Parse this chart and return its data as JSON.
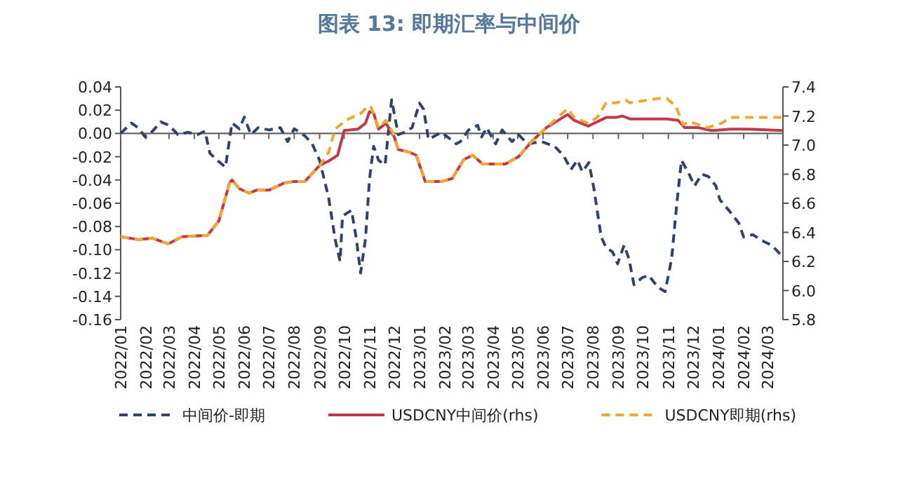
{
  "chart_data": {
    "type": "line",
    "title": "图表 13: 即期汇率与中间价",
    "xlim": [
      "2022-01-01",
      "2024-03-20"
    ],
    "xticks": [
      {
        "value": "2022-01",
        "label": "2022/01"
      },
      {
        "value": "2022-02",
        "label": "2022/02"
      },
      {
        "value": "2022-03",
        "label": "2022/03"
      },
      {
        "value": "2022-04",
        "label": "2022/04"
      },
      {
        "value": "2022-05",
        "label": "2022/05"
      },
      {
        "value": "2022-06",
        "label": "2022/06"
      },
      {
        "value": "2022-07",
        "label": "2022/07"
      },
      {
        "value": "2022-08",
        "label": "2022/08"
      },
      {
        "value": "2022-09",
        "label": "2022/09"
      },
      {
        "value": "2022-10",
        "label": "2022/10"
      },
      {
        "value": "2022-11",
        "label": "2022/11"
      },
      {
        "value": "2022-12",
        "label": "2022/12"
      },
      {
        "value": "2023-01",
        "label": "2023/01"
      },
      {
        "value": "2023-02",
        "label": "2023/02"
      },
      {
        "value": "2023-03",
        "label": "2023/03"
      },
      {
        "value": "2023-04",
        "label": "2023/04"
      },
      {
        "value": "2023-05",
        "label": "2023/05"
      },
      {
        "value": "2023-06",
        "label": "2023/06"
      },
      {
        "value": "2023-07",
        "label": "2023/07"
      },
      {
        "value": "2023-08",
        "label": "2023/08"
      },
      {
        "value": "2023-09",
        "label": "2023/09"
      },
      {
        "value": "2023-10",
        "label": "2023/10"
      },
      {
        "value": "2023-11",
        "label": "2023/11"
      },
      {
        "value": "2023-12",
        "label": "2023/12"
      },
      {
        "value": "2024-01",
        "label": "2024/01"
      },
      {
        "value": "2024-02",
        "label": "2024/02"
      },
      {
        "value": "2024-03",
        "label": "2024/03"
      }
    ],
    "ylim": [
      -0.16,
      0.04
    ],
    "yticks": [
      {
        "value": 0.04,
        "label": "0.04"
      },
      {
        "value": 0.02,
        "label": "0.02"
      },
      {
        "value": 0,
        "label": "0.00"
      },
      {
        "value": -0.02,
        "label": "-0.02"
      },
      {
        "value": -0.04,
        "label": "-0.04"
      },
      {
        "value": -0.06,
        "label": "-0.06"
      },
      {
        "value": -0.08,
        "label": "-0.08"
      },
      {
        "value": -0.1,
        "label": "-0.10"
      },
      {
        "value": -0.12,
        "label": "-0.12"
      },
      {
        "value": -0.14,
        "label": "-0.14"
      },
      {
        "value": -0.16,
        "label": "-0.16"
      }
    ],
    "y2lim": [
      5.8,
      7.4
    ],
    "y2ticks": [
      {
        "value": 7.4,
        "label": "7.4"
      },
      {
        "value": 7.2,
        "label": "7.2"
      },
      {
        "value": 7.0,
        "label": "7.0"
      },
      {
        "value": 6.8,
        "label": "6.8"
      },
      {
        "value": 6.6,
        "label": "6.6"
      },
      {
        "value": 6.4,
        "label": "6.4"
      },
      {
        "value": 6.2,
        "label": "6.2"
      },
      {
        "value": 6.0,
        "label": "6.0"
      },
      {
        "value": 5.8,
        "label": "5.8"
      }
    ],
    "legend": "bottom",
    "series": [
      {
        "name": "中间价-即期",
        "color": "#2f4468",
        "line_style": "dashed",
        "x": [
          "2022-01-01",
          "2022-01-14",
          "2022-01-22",
          "2022-01-31",
          "2022-02-09",
          "2022-02-19",
          "2022-03-01",
          "2022-03-12",
          "2022-03-24",
          "2022-04-05",
          "2022-04-14",
          "2022-04-20",
          "2022-04-29",
          "2022-05-09",
          "2022-05-17",
          "2022-05-26",
          "2022-06-01",
          "2022-06-09",
          "2022-06-18",
          "2022-07-01",
          "2022-07-15",
          "2022-07-24",
          "2022-08-01",
          "2022-08-14",
          "2022-08-23",
          "2022-09-01",
          "2022-09-12",
          "2022-09-20",
          "2022-09-26",
          "2022-09-29",
          "2022-10-10",
          "2022-10-16",
          "2022-10-21",
          "2022-10-27",
          "2022-11-01",
          "2022-11-06",
          "2022-11-12",
          "2022-11-20",
          "2022-11-24",
          "2022-11-28",
          "2022-12-06",
          "2022-12-14",
          "2022-12-23",
          "2023-01-01",
          "2023-01-06",
          "2023-01-12",
          "2023-01-28",
          "2023-02-15",
          "2023-02-20",
          "2023-03-02",
          "2023-03-13",
          "2023-03-18",
          "2023-03-24",
          "2023-04-04",
          "2023-04-12",
          "2023-04-24",
          "2023-05-02",
          "2023-05-13",
          "2023-05-30",
          "2023-06-15",
          "2023-06-26",
          "2023-07-05",
          "2023-07-13",
          "2023-07-19",
          "2023-07-27",
          "2023-08-02",
          "2023-08-11",
          "2023-08-17",
          "2023-08-25",
          "2023-08-31",
          "2023-09-08",
          "2023-09-14",
          "2023-09-20",
          "2023-09-30",
          "2023-10-08",
          "2023-10-19",
          "2023-10-28",
          "2023-11-05",
          "2023-11-11",
          "2023-11-17",
          "2023-11-25",
          "2023-12-03",
          "2023-12-12",
          "2023-12-20",
          "2023-12-29",
          "2024-01-03",
          "2024-01-15",
          "2024-01-26",
          "2024-02-01",
          "2024-02-12",
          "2024-02-26",
          "2024-03-06",
          "2024-03-20"
        ],
        "values": [
          0,
          0.009,
          0.005,
          -0.003,
          0.002,
          0.01,
          0.007,
          -0.001,
          0.001,
          -0.001,
          0.002,
          -0.017,
          -0.023,
          -0.029,
          0.009,
          0.004,
          0.014,
          -0.001,
          0.005,
          0.003,
          0.005,
          -0.007,
          0.004,
          -0.002,
          -0.009,
          -0.023,
          -0.055,
          -0.091,
          -0.11,
          -0.071,
          -0.066,
          -0.091,
          -0.12,
          -0.091,
          -0.039,
          -0.011,
          -0.023,
          -0.027,
          0.001,
          0.029,
          -0.001,
          0.001,
          0.005,
          0.026,
          0.021,
          -0.005,
          0.001,
          -0.009,
          -0.007,
          0.003,
          0.007,
          -0.003,
          0.005,
          -0.009,
          0.003,
          -0.007,
          -0.001,
          -0.009,
          -0.007,
          -0.011,
          -0.019,
          -0.031,
          -0.023,
          -0.033,
          -0.025,
          -0.047,
          -0.089,
          -0.098,
          -0.102,
          -0.112,
          -0.096,
          -0.108,
          -0.13,
          -0.124,
          -0.122,
          -0.132,
          -0.136,
          -0.108,
          -0.063,
          -0.023,
          -0.033,
          -0.045,
          -0.035,
          -0.037,
          -0.045,
          -0.057,
          -0.067,
          -0.077,
          -0.089,
          -0.087,
          -0.093,
          -0.096,
          -0.106
        ]
      },
      {
        "name": "USDCNY中间价(rhs)",
        "color": "#c0394b",
        "line_style": "solid",
        "axis": "y2",
        "x": [
          "2022-01-01",
          "2022-01-23",
          "2022-02-09",
          "2022-02-28",
          "2022-03-17",
          "2022-04-17",
          "2022-05-01",
          "2022-05-14",
          "2022-05-17",
          "2022-05-26",
          "2022-06-07",
          "2022-06-16",
          "2022-07-01",
          "2022-07-20",
          "2022-08-01",
          "2022-08-14",
          "2022-09-01",
          "2022-09-12",
          "2022-09-23",
          "2022-10-01",
          "2022-10-18",
          "2022-10-27",
          "2022-11-01",
          "2022-11-06",
          "2022-11-12",
          "2022-11-21",
          "2022-12-01",
          "2022-12-06",
          "2022-12-20",
          "2022-12-28",
          "2023-01-08",
          "2023-01-28",
          "2023-02-10",
          "2023-02-24",
          "2023-03-07",
          "2023-03-19",
          "2023-04-16",
          "2023-05-02",
          "2023-05-19",
          "2023-06-05",
          "2023-07-01",
          "2023-07-09",
          "2023-07-26",
          "2023-08-17",
          "2023-08-29",
          "2023-09-06",
          "2023-09-15",
          "2023-10-30",
          "2023-11-13",
          "2023-11-21",
          "2023-12-07",
          "2023-12-24",
          "2024-01-16",
          "2024-02-07",
          "2024-03-20"
        ],
        "values": [
          6.37,
          6.35,
          6.36,
          6.32,
          6.37,
          6.38,
          6.48,
          6.74,
          6.76,
          6.7,
          6.67,
          6.69,
          6.69,
          6.74,
          6.75,
          6.75,
          6.86,
          6.89,
          6.93,
          7.1,
          7.11,
          7.15,
          7.23,
          7.22,
          7.11,
          7.15,
          7.06,
          6.97,
          6.95,
          6.93,
          6.75,
          6.75,
          6.77,
          6.9,
          6.93,
          6.87,
          6.87,
          6.92,
          7.03,
          7.12,
          7.21,
          7.17,
          7.13,
          7.19,
          7.19,
          7.2,
          7.18,
          7.18,
          7.17,
          7.12,
          7.12,
          7.1,
          7.11,
          7.11,
          7.1
        ]
      },
      {
        "name": "USDCNY即期(rhs)",
        "color": "#f0a830",
        "line_style": "dashed",
        "axis": "y2",
        "x": [
          "2022-01-01",
          "2022-01-23",
          "2022-02-09",
          "2022-02-28",
          "2022-03-17",
          "2022-04-17",
          "2022-05-01",
          "2022-05-14",
          "2022-05-17",
          "2022-05-26",
          "2022-06-07",
          "2022-06-16",
          "2022-07-01",
          "2022-07-20",
          "2022-08-01",
          "2022-08-14",
          "2022-09-01",
          "2022-09-12",
          "2022-09-20",
          "2022-10-03",
          "2022-10-22",
          "2022-10-30",
          "2022-11-03",
          "2022-11-12",
          "2022-11-21",
          "2022-12-01",
          "2022-12-06",
          "2022-12-20",
          "2022-12-28",
          "2023-01-08",
          "2023-01-28",
          "2023-02-10",
          "2023-02-24",
          "2023-03-07",
          "2023-03-19",
          "2023-04-16",
          "2023-05-02",
          "2023-05-19",
          "2023-06-05",
          "2023-07-01",
          "2023-07-09",
          "2023-07-26",
          "2023-08-06",
          "2023-08-17",
          "2023-08-29",
          "2023-09-10",
          "2023-09-15",
          "2023-09-26",
          "2023-10-19",
          "2023-10-30",
          "2023-11-10",
          "2023-11-19",
          "2023-11-27",
          "2023-12-19",
          "2024-01-05",
          "2024-01-16",
          "2024-02-07",
          "2024-03-20"
        ],
        "values": [
          6.37,
          6.35,
          6.36,
          6.32,
          6.37,
          6.38,
          6.48,
          6.74,
          6.76,
          6.7,
          6.67,
          6.69,
          6.69,
          6.74,
          6.75,
          6.75,
          6.86,
          6.95,
          7.11,
          7.17,
          7.22,
          7.27,
          7.26,
          7.12,
          7.17,
          7.07,
          6.97,
          6.95,
          6.93,
          6.75,
          6.75,
          6.77,
          6.9,
          6.93,
          6.87,
          6.87,
          6.92,
          7.03,
          7.12,
          7.25,
          7.19,
          7.15,
          7.19,
          7.29,
          7.29,
          7.31,
          7.29,
          7.3,
          7.32,
          7.32,
          7.27,
          7.14,
          7.16,
          7.12,
          7.15,
          7.19,
          7.19,
          7.19
        ]
      }
    ]
  }
}
